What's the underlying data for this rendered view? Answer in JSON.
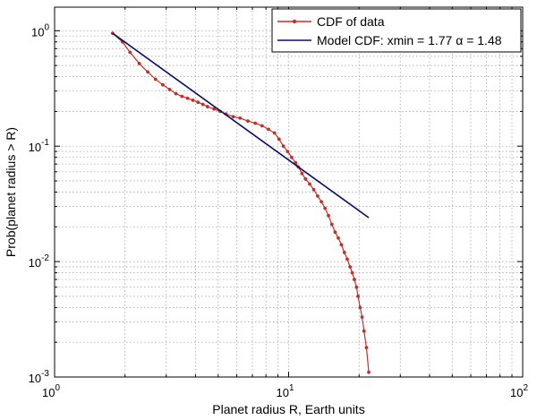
{
  "chart_data": {
    "type": "line",
    "xlabel": "Planet radius R, Earth units",
    "ylabel": "Prob(planet radius > R)",
    "xscale": "log",
    "yscale": "log",
    "xlim": [
      1,
      100
    ],
    "ylim": [
      0.001,
      1.6
    ],
    "x_ticks": [
      {
        "value": 1,
        "base": "10",
        "exp": "0"
      },
      {
        "value": 10,
        "base": "10",
        "exp": "1"
      },
      {
        "value": 100,
        "base": "10",
        "exp": "2"
      }
    ],
    "y_ticks": [
      {
        "value": 0.001,
        "base": "10",
        "exp": "-3"
      },
      {
        "value": 0.01,
        "base": "10",
        "exp": "-2"
      },
      {
        "value": 0.1,
        "base": "10",
        "exp": "-1"
      },
      {
        "value": 1,
        "base": "10",
        "exp": "0"
      }
    ],
    "grid": true,
    "grid_minor": true,
    "legend_position": "top-right",
    "series": [
      {
        "name": "CDF of data",
        "color": "#c0302a",
        "marker": "dot",
        "x": [
          1.77,
          1.95,
          2.1,
          2.3,
          2.5,
          2.7,
          2.9,
          3.1,
          3.3,
          3.5,
          3.7,
          3.9,
          4.1,
          4.3,
          4.5,
          4.8,
          5.1,
          5.4,
          5.8,
          6.2,
          6.7,
          7.2,
          7.7,
          8.2,
          8.7,
          9.1,
          9.5,
          9.9,
          10.3,
          10.7,
          11.0,
          11.4,
          11.8,
          12.3,
          12.8,
          13.3,
          13.8,
          14.3,
          14.8,
          15.3,
          15.8,
          16.3,
          16.8,
          17.3,
          17.8,
          18.3,
          18.7,
          19.1,
          19.5,
          19.8,
          20.2,
          20.6,
          21.0,
          21.5,
          22.0
        ],
        "y": [
          0.95,
          0.8,
          0.65,
          0.52,
          0.44,
          0.38,
          0.34,
          0.31,
          0.285,
          0.27,
          0.26,
          0.25,
          0.24,
          0.23,
          0.22,
          0.21,
          0.2,
          0.19,
          0.18,
          0.175,
          0.165,
          0.158,
          0.15,
          0.14,
          0.13,
          0.115,
          0.1,
          0.09,
          0.08,
          0.072,
          0.066,
          0.058,
          0.052,
          0.047,
          0.042,
          0.037,
          0.033,
          0.029,
          0.025,
          0.021,
          0.018,
          0.016,
          0.014,
          0.012,
          0.0105,
          0.009,
          0.008,
          0.007,
          0.006,
          0.005,
          0.004,
          0.0033,
          0.0025,
          0.0018,
          0.0011
        ]
      },
      {
        "name": "Model CDF: xmin = 1.77 α = 1.48",
        "color": "#0b0b6b",
        "marker": "none",
        "x": [
          1.77,
          22.0
        ],
        "y": [
          0.95,
          0.024
        ]
      }
    ]
  }
}
